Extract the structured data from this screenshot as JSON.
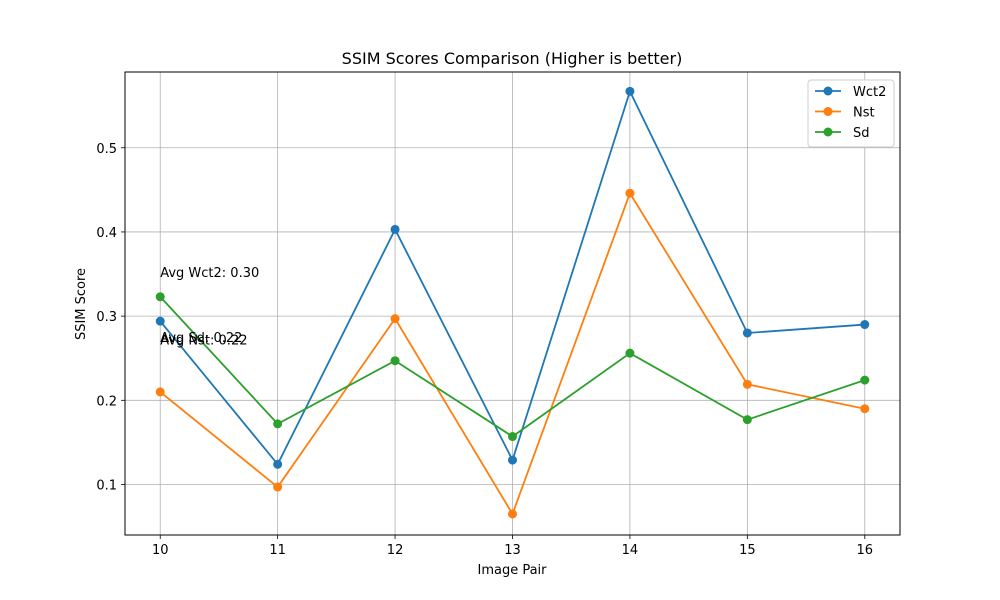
{
  "chart_data": {
    "type": "line",
    "title": "SSIM Scores Comparison (Higher is better)",
    "xlabel": "Image Pair",
    "ylabel": "SSIM Score",
    "x": [
      10,
      11,
      12,
      13,
      14,
      15,
      16
    ],
    "x_tick_labels": [
      "10",
      "11",
      "12",
      "13",
      "14",
      "15",
      "16"
    ],
    "ylim": [
      0.04,
      0.59
    ],
    "y_ticks": [
      0.1,
      0.2,
      0.3,
      0.4,
      0.5
    ],
    "y_tick_labels": [
      "0.1",
      "0.2",
      "0.3",
      "0.4",
      "0.5"
    ],
    "grid": true,
    "legend_position": "top-right",
    "series": [
      {
        "name": "Wct2",
        "color": "#1f77b4",
        "values": [
          0.294,
          0.124,
          0.403,
          0.129,
          0.567,
          0.28,
          0.29
        ]
      },
      {
        "name": "Nst",
        "color": "#ff7f0e",
        "values": [
          0.21,
          0.097,
          0.297,
          0.065,
          0.446,
          0.219,
          0.19
        ]
      },
      {
        "name": "Sd",
        "color": "#2ca02c",
        "values": [
          0.323,
          0.172,
          0.247,
          0.157,
          0.256,
          0.177,
          0.224
        ]
      }
    ],
    "annotations": [
      {
        "text": "Avg Wct2: 0.30",
        "x": 10,
        "y": 0.35
      },
      {
        "text": "Avg Nst: 0.22",
        "x": 10,
        "y": 0.27
      },
      {
        "text": "Avg Sd: 0.22",
        "x": 10,
        "y": 0.273
      }
    ]
  }
}
